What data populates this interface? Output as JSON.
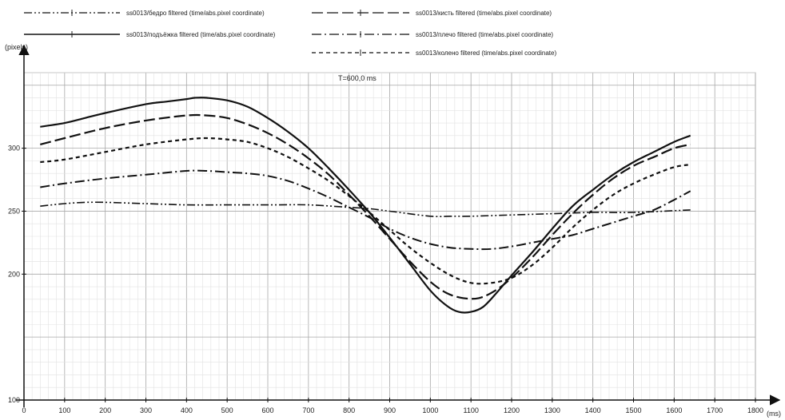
{
  "chart_data": {
    "type": "line",
    "annotation": "T=600,0 ms",
    "xlabel": "(ms)",
    "ylabel": "(pixels)",
    "xlim": [
      0,
      1800
    ],
    "ylim": [
      100,
      360
    ],
    "xticks": [
      0,
      100,
      200,
      300,
      400,
      500,
      600,
      700,
      800,
      900,
      1000,
      1100,
      1200,
      1300,
      1400,
      1500,
      1600,
      1700,
      1800
    ],
    "yticks": [
      100,
      200,
      250,
      300
    ],
    "grid": true,
    "legend_position": "top",
    "series": [
      {
        "name": "ss0013/бедро filtered (time/abs.pixel coordinate)",
        "style": "dash-dot-dot",
        "points": [
          [
            40,
            254
          ],
          [
            100,
            256
          ],
          [
            150,
            257
          ],
          [
            200,
            257
          ],
          [
            300,
            256
          ],
          [
            400,
            255
          ],
          [
            500,
            255
          ],
          [
            600,
            255
          ],
          [
            700,
            255
          ],
          [
            800,
            253
          ],
          [
            850,
            252
          ],
          [
            900,
            250
          ],
          [
            1000,
            246
          ],
          [
            1050,
            246
          ],
          [
            1100,
            246
          ],
          [
            1200,
            247
          ],
          [
            1300,
            248
          ],
          [
            1400,
            249
          ],
          [
            1500,
            249
          ],
          [
            1640,
            251
          ]
        ]
      },
      {
        "name": "ss0013/кисть filtered (time/abs.pixel coordinate)",
        "style": "long-dash",
        "points": [
          [
            40,
            303
          ],
          [
            100,
            308
          ],
          [
            200,
            316
          ],
          [
            300,
            322
          ],
          [
            400,
            326
          ],
          [
            450,
            326
          ],
          [
            500,
            324
          ],
          [
            550,
            319
          ],
          [
            600,
            312
          ],
          [
            650,
            303
          ],
          [
            700,
            292
          ],
          [
            750,
            279
          ],
          [
            800,
            263
          ],
          [
            850,
            246
          ],
          [
            900,
            228
          ],
          [
            950,
            210
          ],
          [
            1000,
            194
          ],
          [
            1040,
            185
          ],
          [
            1080,
            181
          ],
          [
            1120,
            181
          ],
          [
            1160,
            187
          ],
          [
            1200,
            197
          ],
          [
            1250,
            213
          ],
          [
            1300,
            231
          ],
          [
            1350,
            248
          ],
          [
            1400,
            263
          ],
          [
            1450,
            276
          ],
          [
            1500,
            286
          ],
          [
            1550,
            293
          ],
          [
            1600,
            300
          ],
          [
            1640,
            303
          ]
        ]
      },
      {
        "name": "ss0013/подъёжка filtered (time/abs.pixel coordinate)",
        "style": "solid",
        "points": [
          [
            40,
            317
          ],
          [
            100,
            320
          ],
          [
            150,
            324
          ],
          [
            200,
            328
          ],
          [
            300,
            335
          ],
          [
            350,
            337
          ],
          [
            400,
            339
          ],
          [
            420,
            340
          ],
          [
            450,
            340
          ],
          [
            500,
            338
          ],
          [
            550,
            333
          ],
          [
            600,
            324
          ],
          [
            650,
            313
          ],
          [
            700,
            300
          ],
          [
            750,
            284
          ],
          [
            800,
            267
          ],
          [
            850,
            249
          ],
          [
            900,
            229
          ],
          [
            950,
            208
          ],
          [
            1000,
            187
          ],
          [
            1040,
            175
          ],
          [
            1070,
            170
          ],
          [
            1100,
            170
          ],
          [
            1130,
            174
          ],
          [
            1160,
            184
          ],
          [
            1200,
            199
          ],
          [
            1250,
            217
          ],
          [
            1300,
            236
          ],
          [
            1350,
            254
          ],
          [
            1400,
            267
          ],
          [
            1450,
            279
          ],
          [
            1500,
            289
          ],
          [
            1550,
            297
          ],
          [
            1600,
            305
          ],
          [
            1640,
            310
          ]
        ]
      },
      {
        "name": "ss0013/плечо filtered (time/abs.pixel coordinate)",
        "style": "dash-dot",
        "points": [
          [
            40,
            269
          ],
          [
            100,
            272
          ],
          [
            200,
            276
          ],
          [
            300,
            279
          ],
          [
            400,
            282
          ],
          [
            450,
            282
          ],
          [
            500,
            281
          ],
          [
            550,
            280
          ],
          [
            600,
            278
          ],
          [
            650,
            274
          ],
          [
            700,
            268
          ],
          [
            750,
            261
          ],
          [
            800,
            253
          ],
          [
            850,
            245
          ],
          [
            900,
            236
          ],
          [
            950,
            229
          ],
          [
            1000,
            224
          ],
          [
            1050,
            221
          ],
          [
            1100,
            220
          ],
          [
            1150,
            220
          ],
          [
            1200,
            222
          ],
          [
            1250,
            225
          ],
          [
            1300,
            228
          ],
          [
            1350,
            231
          ],
          [
            1400,
            236
          ],
          [
            1450,
            241
          ],
          [
            1500,
            246
          ],
          [
            1550,
            251
          ],
          [
            1600,
            259
          ],
          [
            1640,
            266
          ]
        ]
      },
      {
        "name": "ss0013/колено filtered (time/abs.pixel coordinate)",
        "style": "short-dash",
        "points": [
          [
            40,
            289
          ],
          [
            100,
            291
          ],
          [
            200,
            297
          ],
          [
            300,
            303
          ],
          [
            400,
            307
          ],
          [
            450,
            308
          ],
          [
            500,
            307
          ],
          [
            550,
            305
          ],
          [
            600,
            300
          ],
          [
            650,
            293
          ],
          [
            700,
            284
          ],
          [
            750,
            274
          ],
          [
            800,
            262
          ],
          [
            850,
            249
          ],
          [
            900,
            235
          ],
          [
            950,
            221
          ],
          [
            1000,
            209
          ],
          [
            1050,
            199
          ],
          [
            1100,
            193
          ],
          [
            1150,
            193
          ],
          [
            1200,
            197
          ],
          [
            1250,
            207
          ],
          [
            1300,
            221
          ],
          [
            1350,
            237
          ],
          [
            1400,
            251
          ],
          [
            1450,
            263
          ],
          [
            1500,
            272
          ],
          [
            1550,
            279
          ],
          [
            1600,
            285
          ],
          [
            1640,
            287
          ]
        ]
      }
    ]
  }
}
